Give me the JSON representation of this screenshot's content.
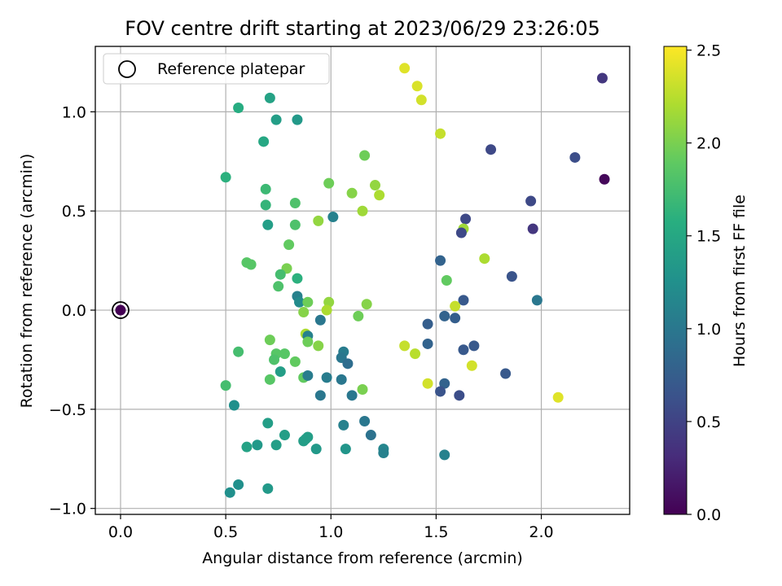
{
  "chart_data": {
    "type": "scatter",
    "title": "FOV centre drift starting at 2023/06/29 23:26:05",
    "xlabel": "Angular distance from reference (arcmin)",
    "ylabel": "Rotation from reference (arcmin)",
    "xlim": [
      -0.12,
      2.42
    ],
    "ylim": [
      -1.03,
      1.33
    ],
    "xticks": [
      0.0,
      0.5,
      1.0,
      1.5,
      2.0
    ],
    "xtick_labels": [
      "0.0",
      "0.5",
      "1.0",
      "1.5",
      "2.0"
    ],
    "yticks": [
      -1.0,
      -0.5,
      0.0,
      0.5,
      1.0
    ],
    "ytick_labels": [
      "−1.0",
      "−0.5",
      "0.0",
      "0.5",
      "1.0"
    ],
    "grid": true,
    "legend": {
      "position": "top-left",
      "entries": [
        "Reference platepar"
      ]
    },
    "colorbar": {
      "label": "Hours from first FF file",
      "range": [
        0.0,
        2.52
      ],
      "colormap": "viridis",
      "ticks": [
        0.0,
        0.5,
        1.0,
        1.5,
        2.0,
        2.5
      ],
      "tick_labels": [
        "0.0",
        "0.5",
        "1.0",
        "1.5",
        "2.0",
        "2.5"
      ]
    },
    "reference_point": {
      "x": 0.0,
      "y": 0.0,
      "c": 0.0
    },
    "points": [
      {
        "x": 1.35,
        "y": 1.22,
        "c": 2.4
      },
      {
        "x": 1.41,
        "y": 1.13,
        "c": 2.38
      },
      {
        "x": 1.43,
        "y": 1.06,
        "c": 2.35
      },
      {
        "x": 1.52,
        "y": 0.89,
        "c": 2.3
      },
      {
        "x": 2.29,
        "y": 1.17,
        "c": 0.4
      },
      {
        "x": 2.3,
        "y": 0.66,
        "c": 0.05
      },
      {
        "x": 1.76,
        "y": 0.81,
        "c": 0.55
      },
      {
        "x": 2.16,
        "y": 0.77,
        "c": 0.6
      },
      {
        "x": 1.95,
        "y": 0.55,
        "c": 0.55
      },
      {
        "x": 1.96,
        "y": 0.41,
        "c": 0.4
      },
      {
        "x": 0.56,
        "y": 1.02,
        "c": 1.55
      },
      {
        "x": 0.71,
        "y": 1.07,
        "c": 1.45
      },
      {
        "x": 0.74,
        "y": 0.96,
        "c": 1.4
      },
      {
        "x": 0.84,
        "y": 0.96,
        "c": 1.35
      },
      {
        "x": 0.68,
        "y": 0.85,
        "c": 1.5
      },
      {
        "x": 1.16,
        "y": 0.78,
        "c": 1.95
      },
      {
        "x": 0.5,
        "y": 0.67,
        "c": 1.6
      },
      {
        "x": 0.69,
        "y": 0.61,
        "c": 1.7
      },
      {
        "x": 0.99,
        "y": 0.64,
        "c": 1.95
      },
      {
        "x": 1.21,
        "y": 0.63,
        "c": 2.1
      },
      {
        "x": 1.1,
        "y": 0.59,
        "c": 2.05
      },
      {
        "x": 1.23,
        "y": 0.58,
        "c": 2.2
      },
      {
        "x": 0.69,
        "y": 0.53,
        "c": 1.65
      },
      {
        "x": 0.83,
        "y": 0.54,
        "c": 1.8
      },
      {
        "x": 1.15,
        "y": 0.5,
        "c": 2.15
      },
      {
        "x": 1.01,
        "y": 0.47,
        "c": 1.1
      },
      {
        "x": 0.7,
        "y": 0.43,
        "c": 1.4
      },
      {
        "x": 0.83,
        "y": 0.43,
        "c": 1.8
      },
      {
        "x": 0.94,
        "y": 0.45,
        "c": 2.1
      },
      {
        "x": 1.64,
        "y": 0.46,
        "c": 0.55
      },
      {
        "x": 1.63,
        "y": 0.41,
        "c": 2.15
      },
      {
        "x": 1.62,
        "y": 0.39,
        "c": 0.55
      },
      {
        "x": 0.8,
        "y": 0.33,
        "c": 1.9
      },
      {
        "x": 0.6,
        "y": 0.24,
        "c": 1.85
      },
      {
        "x": 0.62,
        "y": 0.23,
        "c": 1.85
      },
      {
        "x": 1.52,
        "y": 0.25,
        "c": 0.8
      },
      {
        "x": 1.73,
        "y": 0.26,
        "c": 2.2
      },
      {
        "x": 0.79,
        "y": 0.21,
        "c": 2.0
      },
      {
        "x": 0.76,
        "y": 0.18,
        "c": 1.75
      },
      {
        "x": 0.84,
        "y": 0.16,
        "c": 1.6
      },
      {
        "x": 1.55,
        "y": 0.15,
        "c": 1.9
      },
      {
        "x": 1.86,
        "y": 0.17,
        "c": 0.65
      },
      {
        "x": 0.75,
        "y": 0.12,
        "c": 1.8
      },
      {
        "x": 0.84,
        "y": 0.07,
        "c": 1.1
      },
      {
        "x": 0.85,
        "y": 0.04,
        "c": 1.2
      },
      {
        "x": 0.89,
        "y": 0.04,
        "c": 1.95
      },
      {
        "x": 0.99,
        "y": 0.04,
        "c": 2.1
      },
      {
        "x": 1.17,
        "y": 0.03,
        "c": 2.05
      },
      {
        "x": 1.63,
        "y": 0.05,
        "c": 0.7
      },
      {
        "x": 1.59,
        "y": 0.02,
        "c": 2.3
      },
      {
        "x": 1.98,
        "y": 0.05,
        "c": 1.0
      },
      {
        "x": 0.87,
        "y": -0.01,
        "c": 2.05
      },
      {
        "x": 0.98,
        "y": 0.0,
        "c": 2.2
      },
      {
        "x": 1.13,
        "y": -0.03,
        "c": 1.95
      },
      {
        "x": 0.95,
        "y": -0.05,
        "c": 1.0
      },
      {
        "x": 1.46,
        "y": -0.07,
        "c": 0.75
      },
      {
        "x": 1.54,
        "y": -0.03,
        "c": 0.8
      },
      {
        "x": 1.59,
        "y": -0.04,
        "c": 0.75
      },
      {
        "x": 0.88,
        "y": -0.12,
        "c": 2.2
      },
      {
        "x": 0.89,
        "y": -0.13,
        "c": 1.1
      },
      {
        "x": 0.71,
        "y": -0.15,
        "c": 1.95
      },
      {
        "x": 0.89,
        "y": -0.16,
        "c": 1.95
      },
      {
        "x": 0.94,
        "y": -0.18,
        "c": 2.05
      },
      {
        "x": 1.35,
        "y": -0.18,
        "c": 2.3
      },
      {
        "x": 1.4,
        "y": -0.22,
        "c": 2.25
      },
      {
        "x": 1.46,
        "y": -0.17,
        "c": 0.8
      },
      {
        "x": 1.63,
        "y": -0.2,
        "c": 0.7
      },
      {
        "x": 1.68,
        "y": -0.18,
        "c": 0.7
      },
      {
        "x": 0.56,
        "y": -0.21,
        "c": 1.75
      },
      {
        "x": 0.74,
        "y": -0.22,
        "c": 1.85
      },
      {
        "x": 0.78,
        "y": -0.22,
        "c": 1.85
      },
      {
        "x": 0.73,
        "y": -0.25,
        "c": 1.8
      },
      {
        "x": 0.83,
        "y": -0.26,
        "c": 1.9
      },
      {
        "x": 1.06,
        "y": -0.21,
        "c": 1.05
      },
      {
        "x": 1.05,
        "y": -0.24,
        "c": 1.0
      },
      {
        "x": 1.08,
        "y": -0.27,
        "c": 0.9
      },
      {
        "x": 1.67,
        "y": -0.28,
        "c": 2.35
      },
      {
        "x": 0.76,
        "y": -0.31,
        "c": 1.4
      },
      {
        "x": 0.71,
        "y": -0.35,
        "c": 1.85
      },
      {
        "x": 0.87,
        "y": -0.34,
        "c": 1.9
      },
      {
        "x": 0.89,
        "y": -0.33,
        "c": 1.05
      },
      {
        "x": 0.98,
        "y": -0.34,
        "c": 1.05
      },
      {
        "x": 1.05,
        "y": -0.35,
        "c": 1.0
      },
      {
        "x": 1.15,
        "y": -0.4,
        "c": 2.0
      },
      {
        "x": 1.46,
        "y": -0.37,
        "c": 2.35
      },
      {
        "x": 1.54,
        "y": -0.37,
        "c": 0.8
      },
      {
        "x": 1.52,
        "y": -0.41,
        "c": 0.65
      },
      {
        "x": 1.61,
        "y": -0.43,
        "c": 0.6
      },
      {
        "x": 1.83,
        "y": -0.32,
        "c": 0.7
      },
      {
        "x": 2.08,
        "y": -0.44,
        "c": 2.4
      },
      {
        "x": 0.5,
        "y": -0.38,
        "c": 1.75
      },
      {
        "x": 0.95,
        "y": -0.43,
        "c": 1.0
      },
      {
        "x": 1.1,
        "y": -0.43,
        "c": 1.0
      },
      {
        "x": 0.54,
        "y": -0.48,
        "c": 1.25
      },
      {
        "x": 0.7,
        "y": -0.57,
        "c": 1.4
      },
      {
        "x": 1.06,
        "y": -0.58,
        "c": 1.1
      },
      {
        "x": 1.16,
        "y": -0.56,
        "c": 1.0
      },
      {
        "x": 0.78,
        "y": -0.63,
        "c": 1.4
      },
      {
        "x": 0.87,
        "y": -0.66,
        "c": 1.4
      },
      {
        "x": 0.88,
        "y": -0.65,
        "c": 1.4
      },
      {
        "x": 0.89,
        "y": -0.64,
        "c": 1.4
      },
      {
        "x": 1.19,
        "y": -0.63,
        "c": 0.95
      },
      {
        "x": 0.6,
        "y": -0.69,
        "c": 1.45
      },
      {
        "x": 0.65,
        "y": -0.68,
        "c": 1.35
      },
      {
        "x": 0.74,
        "y": -0.68,
        "c": 1.4
      },
      {
        "x": 0.93,
        "y": -0.7,
        "c": 1.35
      },
      {
        "x": 1.07,
        "y": -0.7,
        "c": 1.3
      },
      {
        "x": 1.25,
        "y": -0.7,
        "c": 1.15
      },
      {
        "x": 1.25,
        "y": -0.72,
        "c": 1.1
      },
      {
        "x": 1.54,
        "y": -0.73,
        "c": 1.1
      },
      {
        "x": 0.56,
        "y": -0.88,
        "c": 1.25
      },
      {
        "x": 0.52,
        "y": -0.92,
        "c": 1.25
      },
      {
        "x": 0.7,
        "y": -0.9,
        "c": 1.35
      }
    ]
  }
}
